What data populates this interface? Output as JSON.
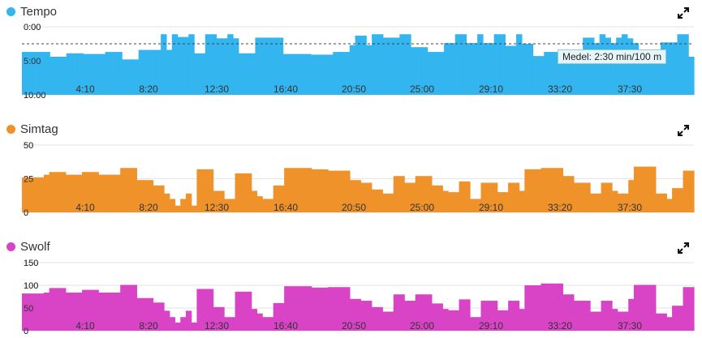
{
  "chart_data": [
    {
      "type": "bar",
      "title": "Tempo",
      "color": "#33b5ef",
      "reversed_y": true,
      "ylim": [
        0,
        10
      ],
      "yticks": [
        "0:00",
        "5:00",
        "10:00"
      ],
      "xticks": [
        "4:10",
        "8:20",
        "12:30",
        "16:40",
        "20:50",
        "25:00",
        "29:10",
        "33:20",
        "37:30"
      ],
      "average_label": "Medel: 2:30 min/100 m",
      "average_value": 2.5,
      "values": [
        3.7,
        3.7,
        3.7,
        3.7,
        3.7,
        4.4,
        4.4,
        4.4,
        3.9,
        3.9,
        3.9,
        4.0,
        4.0,
        4.0,
        4.0,
        3.7,
        3.7,
        3.7,
        4.8,
        4.8,
        4.8,
        3.4,
        3.4,
        3.4,
        3.4,
        1.1,
        3.4,
        1.1,
        1.5,
        1.5,
        1.1,
        3.9,
        3.9,
        1.1,
        1.1,
        1.7,
        1.7,
        1.1,
        1.7,
        3.9,
        3.9,
        3.9,
        1.6,
        1.6,
        1.6,
        1.6,
        1.6,
        4.0,
        4.0,
        4.0,
        4.0,
        4.0,
        4.1,
        4.1,
        4.1,
        4.1,
        3.7,
        3.7,
        3.7,
        2.7,
        1.3,
        1.3,
        2.7,
        1.1,
        1.1,
        1.6,
        1.6,
        1.6,
        1.1,
        1.1,
        3.0,
        3.0,
        3.0,
        3.7,
        3.7,
        3.7,
        2.4,
        2.4,
        1.1,
        1.1,
        2.4,
        2.4,
        1.1,
        2.4,
        2.4,
        1.1,
        1.1,
        2.8,
        2.8,
        1.1,
        2.5,
        2.5,
        4.3,
        4.3,
        3.7,
        3.7,
        3.7,
        4.3,
        4.3,
        4.3,
        4.3,
        1.6,
        1.6,
        2.4,
        1.1,
        1.6,
        2.4,
        1.6,
        1.1,
        1.7,
        2.4,
        4.4,
        4.4,
        4.4,
        4.4,
        2.3,
        2.3,
        2.3,
        1.1,
        1.1,
        4.4
      ]
    },
    {
      "type": "bar",
      "title": "Simtag",
      "color": "#f0922a",
      "ylim": [
        0,
        50
      ],
      "yticks": [
        "0",
        "25",
        "50"
      ],
      "xticks": [
        "4:10",
        "8:20",
        "12:30",
        "16:40",
        "20:50",
        "25:00",
        "29:10",
        "33:20",
        "37:30"
      ],
      "values": [
        26,
        26,
        26,
        26,
        28,
        30,
        30,
        30,
        28,
        28,
        28,
        30,
        30,
        30,
        28,
        28,
        28,
        28,
        33,
        33,
        33,
        24,
        24,
        24,
        20,
        20,
        14,
        10,
        5,
        10,
        14,
        5,
        32,
        32,
        32,
        16,
        16,
        10,
        10,
        29,
        29,
        29,
        16,
        12,
        10,
        10,
        20,
        20,
        33,
        33,
        33,
        33,
        33,
        32,
        32,
        32,
        31,
        31,
        31,
        31,
        24,
        24,
        22,
        22,
        17,
        17,
        14,
        14,
        27,
        27,
        22,
        22,
        27,
        27,
        27,
        20,
        20,
        16,
        15,
        15,
        23,
        23,
        10,
        10,
        22,
        22,
        22,
        15,
        15,
        22,
        22,
        16,
        32,
        32,
        32,
        33,
        33,
        33,
        33,
        27,
        27,
        22,
        22,
        22,
        14,
        14,
        22,
        22,
        16,
        14,
        14,
        24,
        34,
        34,
        34,
        34,
        14,
        14,
        10,
        18,
        18,
        31,
        31
      ]
    },
    {
      "type": "bar",
      "title": "Swolf",
      "color": "#d944c7",
      "ylim": [
        0,
        150
      ],
      "yticks": [
        "0",
        "50",
        "100",
        "150"
      ],
      "xticks": [
        "4:10",
        "8:20",
        "12:30",
        "16:40",
        "20:50",
        "25:00",
        "29:10",
        "33:20",
        "37:30"
      ],
      "values": [
        82,
        82,
        82,
        82,
        84,
        94,
        94,
        94,
        84,
        84,
        84,
        90,
        90,
        90,
        84,
        84,
        84,
        84,
        101,
        101,
        101,
        72,
        72,
        72,
        62,
        62,
        44,
        30,
        18,
        30,
        44,
        18,
        92,
        92,
        92,
        52,
        52,
        30,
        30,
        86,
        86,
        86,
        48,
        38,
        30,
        30,
        61,
        61,
        98,
        98,
        98,
        98,
        98,
        95,
        95,
        95,
        96,
        96,
        96,
        96,
        70,
        70,
        66,
        66,
        52,
        52,
        42,
        42,
        80,
        80,
        66,
        66,
        80,
        80,
        80,
        60,
        60,
        48,
        45,
        45,
        69,
        69,
        30,
        30,
        66,
        66,
        66,
        45,
        45,
        66,
        66,
        48,
        100,
        100,
        100,
        104,
        104,
        104,
        104,
        80,
        80,
        66,
        66,
        66,
        42,
        42,
        66,
        66,
        48,
        42,
        42,
        70,
        101,
        101,
        101,
        101,
        38,
        38,
        30,
        55,
        55,
        96,
        96
      ]
    }
  ]
}
